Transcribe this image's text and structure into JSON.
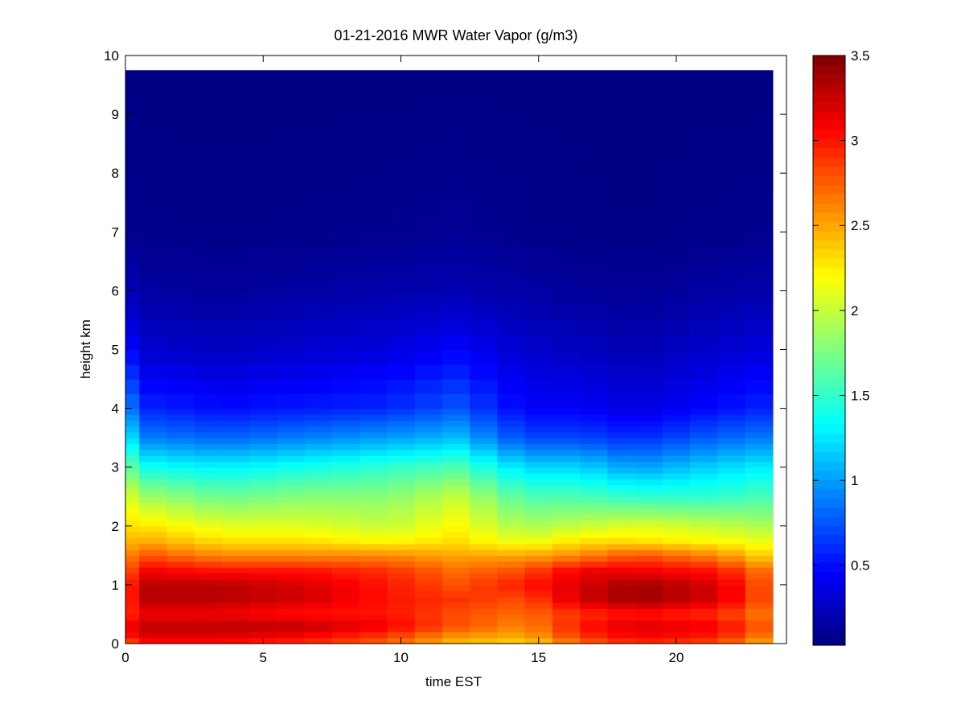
{
  "chart_data": {
    "type": "heatmap",
    "title": "01-21-2016 MWR Water Vapor (g/m3)",
    "xlabel": "time EST",
    "ylabel": "height km",
    "xlim": [
      0,
      24
    ],
    "ylim": [
      0,
      10
    ],
    "xticks": [
      0,
      5,
      10,
      15,
      20
    ],
    "yticks": [
      0,
      1,
      2,
      3,
      4,
      5,
      6,
      7,
      8,
      9,
      10
    ],
    "colorbar": {
      "colormap": "jet",
      "range": [
        0.03,
        3.5
      ],
      "ticks": [
        0.5,
        1,
        1.5,
        2,
        2.5,
        3,
        3.5
      ]
    },
    "data_extent": {
      "x": [
        0,
        23.5
      ],
      "y": [
        0,
        9.75
      ]
    },
    "grid": false,
    "time_hours": [
      0,
      0.5,
      1.5,
      2.5,
      3.5,
      4.5,
      5.5,
      6.5,
      7.5,
      8.5,
      9.5,
      10.5,
      11.5,
      12.5,
      13.5,
      14.5,
      15.5,
      16.5,
      17.5,
      18.5,
      19.5,
      20.5,
      21.5,
      22.5,
      23.5
    ],
    "profile_times": [
      0,
      0.5,
      3.5,
      6.5,
      9.5,
      12,
      14.5,
      16.5,
      18.5,
      21.5,
      23.5
    ],
    "profile_heights_km": [
      0,
      0.15,
      0.3,
      0.5,
      0.75,
      1.0,
      1.25,
      1.5,
      1.75,
      2.0,
      2.5,
      3.0,
      3.5,
      4.0,
      5.0,
      6.0,
      7.0,
      9.75
    ],
    "profiles_g_m3": [
      [
        2.6,
        2.9,
        3.0,
        2.8,
        2.7,
        2.7,
        2.6,
        2.5,
        2.4,
        2.3,
        2.2,
        1.9,
        1.5,
        1.1,
        0.6,
        0.25,
        0.1,
        0.05
      ],
      [
        3.0,
        3.2,
        3.3,
        3.1,
        3.3,
        3.3,
        3.1,
        2.8,
        2.5,
        2.3,
        1.9,
        1.4,
        0.9,
        0.6,
        0.3,
        0.15,
        0.07,
        0.04
      ],
      [
        3.0,
        3.2,
        3.3,
        3.1,
        3.3,
        3.3,
        3.0,
        2.6,
        2.3,
        2.1,
        1.7,
        1.3,
        0.8,
        0.5,
        0.25,
        0.12,
        0.06,
        0.04
      ],
      [
        2.9,
        3.1,
        3.3,
        3.0,
        3.2,
        3.2,
        3.0,
        2.6,
        2.3,
        2.1,
        1.8,
        1.4,
        0.9,
        0.55,
        0.3,
        0.15,
        0.07,
        0.04
      ],
      [
        2.7,
        2.9,
        3.1,
        3.0,
        3.0,
        3.0,
        2.9,
        2.6,
        2.2,
        2.0,
        1.8,
        1.5,
        1.0,
        0.6,
        0.35,
        0.18,
        0.08,
        0.04
      ],
      [
        2.4,
        2.6,
        2.8,
        2.8,
        2.9,
        2.8,
        2.7,
        2.5,
        2.3,
        2.2,
        2.0,
        1.6,
        1.1,
        0.75,
        0.45,
        0.2,
        0.1,
        0.04
      ],
      [
        2.3,
        2.5,
        2.6,
        2.7,
        2.8,
        3.0,
        2.8,
        2.5,
        2.1,
        1.9,
        1.6,
        1.2,
        0.7,
        0.45,
        0.3,
        0.15,
        0.07,
        0.04
      ],
      [
        2.7,
        2.9,
        3.0,
        2.9,
        3.2,
        3.2,
        3.1,
        2.6,
        2.3,
        2.0,
        1.6,
        1.2,
        0.7,
        0.45,
        0.25,
        0.12,
        0.06,
        0.04
      ],
      [
        2.9,
        3.1,
        3.2,
        3.0,
        3.4,
        3.4,
        3.1,
        2.8,
        2.3,
        2.1,
        1.5,
        1.0,
        0.6,
        0.35,
        0.2,
        0.1,
        0.05,
        0.04
      ],
      [
        2.8,
        3.0,
        3.1,
        2.9,
        3.2,
        3.2,
        3.0,
        2.6,
        2.2,
        2.0,
        1.5,
        1.2,
        0.8,
        0.5,
        0.3,
        0.15,
        0.07,
        0.04
      ],
      [
        2.4,
        2.6,
        2.7,
        2.6,
        2.7,
        2.7,
        2.6,
        2.3,
        2.1,
        1.9,
        1.6,
        1.3,
        0.9,
        0.6,
        0.35,
        0.18,
        0.08,
        0.04
      ]
    ]
  }
}
